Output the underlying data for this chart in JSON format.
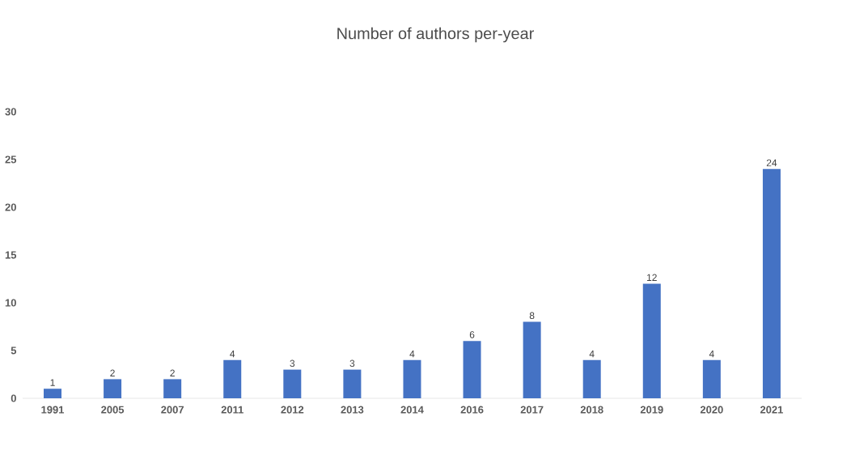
{
  "chart_data": {
    "type": "bar",
    "title": "Number of authors per-year",
    "categories": [
      "1991",
      "2005",
      "2007",
      "2011",
      "2012",
      "2013",
      "2014",
      "2016",
      "2017",
      "2018",
      "2019",
      "2020",
      "2021"
    ],
    "values": [
      1,
      2,
      2,
      4,
      3,
      3,
      4,
      6,
      8,
      4,
      12,
      4,
      24
    ],
    "color": "#4472c4",
    "ylim": [
      0,
      30
    ],
    "yticks": [
      0,
      5,
      10,
      15,
      20,
      25,
      30
    ],
    "data_labels": true
  }
}
